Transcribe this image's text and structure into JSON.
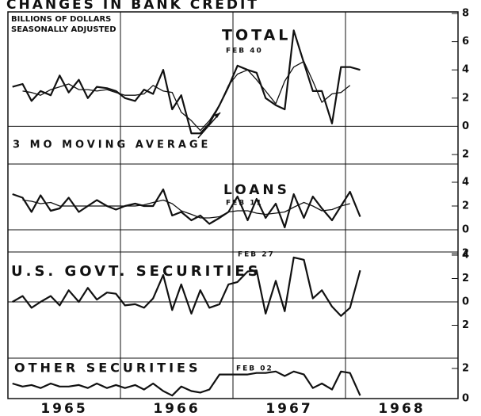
{
  "chart_data": [
    {
      "type": "line",
      "title": "CHANGES IN BANK CREDIT",
      "units": [
        "BILLIONS OF DOLLARS",
        "SEASONALLY ADJUSTED"
      ],
      "label": "TOTAL",
      "annotation": "FEB 40",
      "x": [
        1965.04,
        1965.13,
        1965.21,
        1965.29,
        1965.38,
        1965.46,
        1965.54,
        1965.63,
        1965.71,
        1965.79,
        1965.88,
        1965.96,
        1966.04,
        1966.13,
        1966.21,
        1966.29,
        1966.38,
        1966.46,
        1966.54,
        1966.63,
        1966.71,
        1966.79,
        1966.88,
        1966.96,
        1967.04,
        1967.13,
        1967.21,
        1967.29,
        1967.38,
        1967.46,
        1967.54,
        1967.63,
        1967.71,
        1967.79,
        1967.88,
        1967.96,
        1968.04,
        1968.13
      ],
      "xlim": [
        1965,
        1969
      ],
      "xticks": [
        1965,
        1966,
        1967,
        1968
      ],
      "ylim": [
        -2,
        8
      ],
      "yticks": [
        {
          "value": -2,
          "label": "2"
        },
        0,
        2,
        4,
        6,
        8
      ],
      "series": [
        {
          "color": "#111111",
          "values": [
            2.8,
            3,
            1.8,
            2.5,
            2.2,
            3.6,
            2.4,
            3.3,
            2,
            2.8,
            2.7,
            2.5,
            2,
            1.8,
            2.6,
            2.3,
            4,
            1.2,
            2.2,
            -0.5,
            -0.5,
            0.2,
            1.5,
            2.8,
            4.3,
            4,
            3.8,
            2,
            1.5,
            1.2,
            6.8,
            4.5,
            2.5,
            2.5,
            0.2,
            4.2,
            4.2,
            4.0
          ]
        },
        {
          "name": "3 MO MOVING AVERAGE",
          "color": "#111111",
          "values": [
            null,
            2.5,
            2.4,
            2.2,
            2.6,
            2.8,
            3,
            2.6,
            2.6,
            2.5,
            2.6,
            2.4,
            2.2,
            2.2,
            2.3,
            2.9,
            2.5,
            2.4,
            1,
            0.4,
            -0.3,
            0.4,
            1.5,
            2.9,
            3.7,
            4,
            3.3,
            2.5,
            1.6,
            3.2,
            4.2,
            4.6,
            3.2,
            1.7,
            2.3,
            2.4,
            2.9,
            null
          ]
        }
      ]
    },
    {
      "type": "line",
      "label": "LOANS",
      "annotation": "FEB 11",
      "ylim": [
        -2,
        4
      ],
      "yticks": [
        {
          "value": -2,
          "label": "2"
        },
        0,
        2,
        4
      ],
      "series": [
        {
          "color": "#111111",
          "values": [
            3,
            2.7,
            1.5,
            2.9,
            1.6,
            1.8,
            2.7,
            1.5,
            2,
            2.5,
            2,
            1.7,
            2,
            2.2,
            2,
            2,
            3.4,
            1.2,
            1.5,
            0.8,
            1.2,
            0.5,
            1,
            1.5,
            2.8,
            0.8,
            2.6,
            1,
            2.2,
            0.2,
            3,
            1,
            2.8,
            1.8,
            0.8,
            2,
            3.2,
            1.1
          ]
        },
        {
          "color": "#111111",
          "values": [
            null,
            2.5,
            2.4,
            2.2,
            2.3,
            2,
            2,
            2,
            2,
            2,
            2,
            2,
            2,
            2,
            2.1,
            2.3,
            2.5,
            2.2,
            1.6,
            1.3,
            1,
            1,
            1.1,
            1.5,
            1.6,
            1.6,
            1.4,
            1.3,
            1.4,
            1.5,
            1.9,
            2.3,
            2,
            1.6,
            1.7,
            2,
            2.2,
            null
          ]
        }
      ]
    },
    {
      "type": "line",
      "label": "U.S. GOVT. SECURITIES",
      "annotation": "FEB 27",
      "ylim": [
        -4,
        4
      ],
      "yticks": [
        {
          "value": -2,
          "label": "2"
        },
        0,
        2,
        4
      ],
      "series": [
        {
          "color": "#111111",
          "values": [
            0,
            0.5,
            -0.5,
            0,
            0.5,
            -0.3,
            1,
            0,
            1.2,
            0.2,
            0.8,
            0.7,
            -0.3,
            -0.2,
            -0.5,
            0.3,
            2.3,
            -0.7,
            1.5,
            -1,
            1,
            -0.5,
            -0.2,
            1.5,
            1.7,
            2.6,
            2.7,
            -1,
            1.8,
            -0.8,
            3.8,
            3.6,
            0.3,
            1,
            -0.4,
            -1.2,
            -0.5,
            2.7
          ]
        }
      ]
    },
    {
      "type": "line",
      "label": "OTHER SECURITIES",
      "annotation": "FEB 02",
      "ylim": [
        0,
        2
      ],
      "yticks": [
        0,
        2
      ],
      "series": [
        {
          "color": "#111111",
          "values": [
            1,
            0.8,
            0.9,
            0.7,
            1,
            0.8,
            0.8,
            0.9,
            0.7,
            1,
            0.7,
            0.9,
            0.7,
            0.9,
            0.6,
            1,
            0.5,
            0.2,
            0.8,
            0.5,
            0.4,
            0.6,
            1.6,
            1.6,
            1.6,
            1.6,
            1.7,
            1.7,
            1.8,
            1.5,
            1.8,
            1.6,
            0.7,
            1,
            0.6,
            1.8,
            1.7,
            0.2
          ]
        }
      ]
    }
  ]
}
